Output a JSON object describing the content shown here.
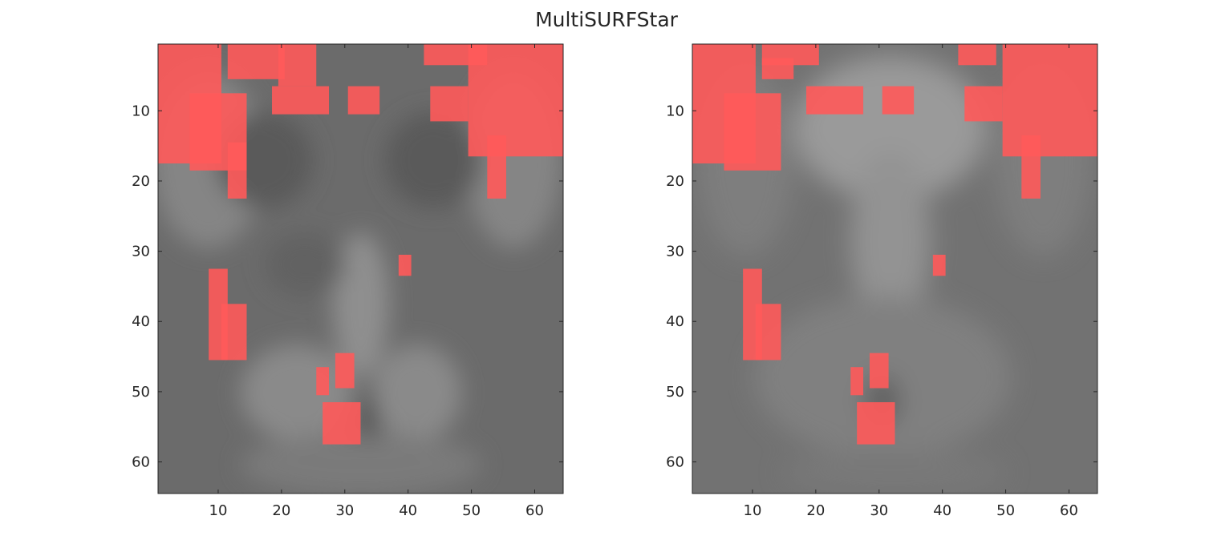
{
  "title": "MultiSURFStar",
  "chart_data": [
    {
      "type": "heatmap",
      "panel": "left",
      "xlim": [
        0.5,
        64.5
      ],
      "ylim": [
        0.5,
        64.5
      ],
      "y_reversed": true,
      "xticks": [
        10,
        20,
        30,
        40,
        50,
        60
      ],
      "yticks": [
        10,
        20,
        30,
        40,
        50,
        60
      ],
      "xtick_labels": [
        "10",
        "20",
        "30",
        "40",
        "50",
        "60"
      ],
      "ytick_labels": [
        "10",
        "20",
        "30",
        "40",
        "50",
        "60"
      ],
      "background": "grayscale brain slice",
      "overlay_color": "#ff5a5a",
      "overlay_regions": [
        {
          "x": [
            1,
            10
          ],
          "y": [
            1,
            17
          ]
        },
        {
          "x": [
            6,
            14
          ],
          "y": [
            8,
            18
          ]
        },
        {
          "x": [
            12,
            14
          ],
          "y": [
            15,
            22
          ]
        },
        {
          "x": [
            12,
            20
          ],
          "y": [
            1,
            5
          ]
        },
        {
          "x": [
            20,
            25
          ],
          "y": [
            1,
            6
          ]
        },
        {
          "x": [
            19,
            27
          ],
          "y": [
            7,
            10
          ]
        },
        {
          "x": [
            31,
            35
          ],
          "y": [
            7,
            10
          ]
        },
        {
          "x": [
            44,
            49
          ],
          "y": [
            7,
            11
          ]
        },
        {
          "x": [
            43,
            52
          ],
          "y": [
            1,
            3
          ]
        },
        {
          "x": [
            50,
            64
          ],
          "y": [
            1,
            16
          ]
        },
        {
          "x": [
            53,
            55
          ],
          "y": [
            14,
            22
          ]
        },
        {
          "x": [
            9,
            11
          ],
          "y": [
            33,
            45
          ]
        },
        {
          "x": [
            11,
            14
          ],
          "y": [
            38,
            45
          ]
        },
        {
          "x": [
            26,
            27
          ],
          "y": [
            47,
            50
          ]
        },
        {
          "x": [
            29,
            31
          ],
          "y": [
            45,
            49
          ]
        },
        {
          "x": [
            27,
            32
          ],
          "y": [
            52,
            57
          ]
        },
        {
          "x": [
            39,
            40
          ],
          "y": [
            31,
            33
          ]
        }
      ]
    },
    {
      "type": "heatmap",
      "panel": "right",
      "xlim": [
        0.5,
        64.5
      ],
      "ylim": [
        0.5,
        64.5
      ],
      "y_reversed": true,
      "xticks": [
        10,
        20,
        30,
        40,
        50,
        60
      ],
      "yticks": [
        10,
        20,
        30,
        40,
        50,
        60
      ],
      "xtick_labels": [
        "10",
        "20",
        "30",
        "40",
        "50",
        "60"
      ],
      "ytick_labels": [
        "10",
        "20",
        "30",
        "40",
        "50",
        "60"
      ],
      "background": "grayscale brain slice",
      "overlay_color": "#ff5a5a",
      "overlay_regions": [
        {
          "x": [
            1,
            10
          ],
          "y": [
            1,
            17
          ]
        },
        {
          "x": [
            6,
            14
          ],
          "y": [
            8,
            18
          ]
        },
        {
          "x": [
            12,
            20
          ],
          "y": [
            1,
            3
          ]
        },
        {
          "x": [
            12,
            16
          ],
          "y": [
            3,
            5
          ]
        },
        {
          "x": [
            19,
            27
          ],
          "y": [
            7,
            10
          ]
        },
        {
          "x": [
            31,
            35
          ],
          "y": [
            7,
            10
          ]
        },
        {
          "x": [
            44,
            49
          ],
          "y": [
            7,
            11
          ]
        },
        {
          "x": [
            43,
            48
          ],
          "y": [
            1,
            3
          ]
        },
        {
          "x": [
            50,
            64
          ],
          "y": [
            1,
            16
          ]
        },
        {
          "x": [
            53,
            55
          ],
          "y": [
            14,
            22
          ]
        },
        {
          "x": [
            9,
            11
          ],
          "y": [
            33,
            45
          ]
        },
        {
          "x": [
            11,
            14
          ],
          "y": [
            38,
            45
          ]
        },
        {
          "x": [
            26,
            27
          ],
          "y": [
            47,
            50
          ]
        },
        {
          "x": [
            29,
            31
          ],
          "y": [
            45,
            49
          ]
        },
        {
          "x": [
            27,
            32
          ],
          "y": [
            52,
            57
          ]
        },
        {
          "x": [
            39,
            40
          ],
          "y": [
            31,
            33
          ]
        }
      ]
    }
  ]
}
